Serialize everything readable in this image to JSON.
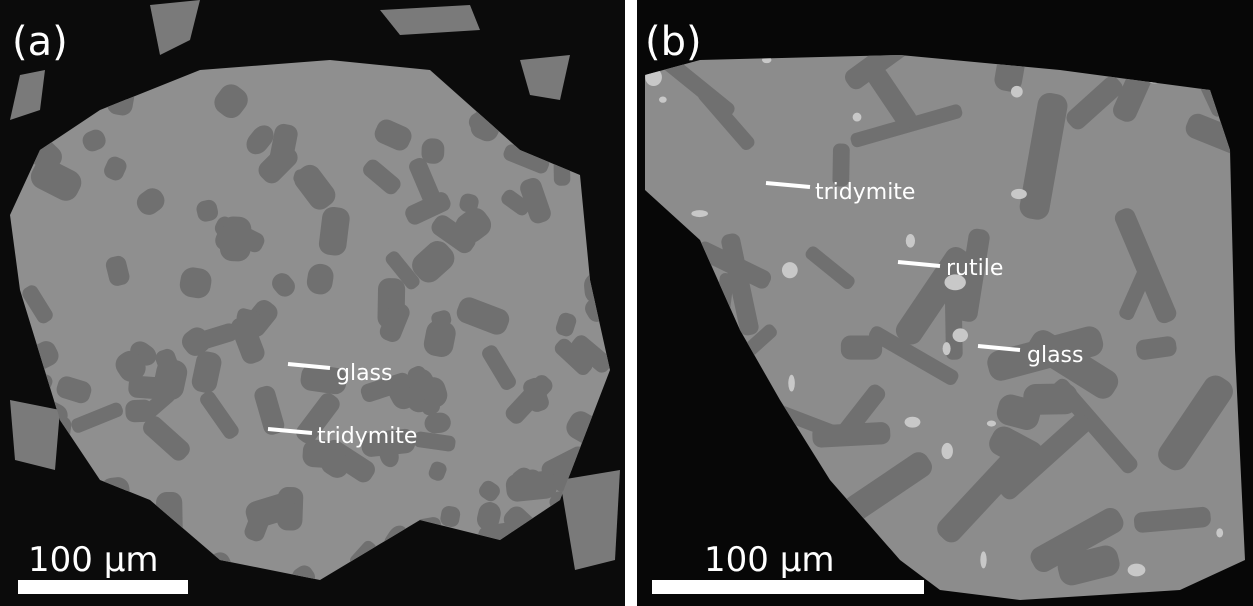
{
  "panels": [
    {
      "label": "(a)",
      "annotations": [
        "glass",
        "tridymite"
      ],
      "scale_bar": "100 μm"
    },
    {
      "label": "(b)",
      "annotations": [
        "tridymite",
        "rutile",
        "glass"
      ],
      "scale_bar": "100 μm"
    }
  ]
}
